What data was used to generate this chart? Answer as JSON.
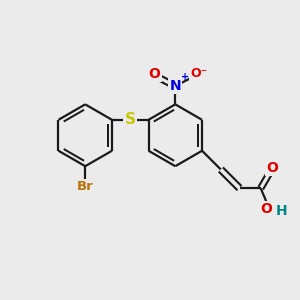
{
  "bg_color": "#ebebeb",
  "bond_color": "#1a1a1a",
  "bond_width": 1.6,
  "atoms": {
    "Br": {
      "color": "#b8730a",
      "fontsize": 9.5
    },
    "S": {
      "color": "#c8c800",
      "fontsize": 10
    },
    "N": {
      "color": "#0000e0",
      "fontsize": 10
    },
    "O": {
      "color": "#e00000",
      "fontsize": 10
    },
    "H": {
      "color": "#008888",
      "fontsize": 10
    }
  },
  "figsize": [
    3.0,
    3.0
  ],
  "dpi": 100
}
